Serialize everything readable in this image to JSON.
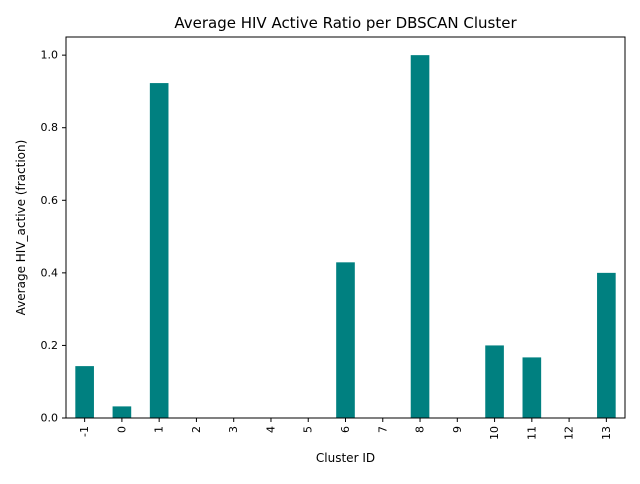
{
  "chart_data": {
    "type": "bar",
    "title": "Average HIV Active Ratio per DBSCAN Cluster",
    "xlabel": "Cluster ID",
    "ylabel": "Average HIV_active (fraction)",
    "categories": [
      "-1",
      "0",
      "1",
      "2",
      "3",
      "4",
      "5",
      "6",
      "7",
      "8",
      "9",
      "10",
      "11",
      "12",
      "13"
    ],
    "values": [
      0.143,
      0.032,
      0.923,
      0.0,
      0.0,
      0.0,
      0.0,
      0.429,
      0.0,
      1.0,
      0.0,
      0.2,
      0.167,
      0.0,
      0.4
    ],
    "ylim": [
      0,
      1.05
    ],
    "yticks": [
      0.0,
      0.2,
      0.4,
      0.6,
      0.8,
      1.0
    ],
    "ytick_labels": [
      "0.0",
      "0.2",
      "0.4",
      "0.6",
      "0.8",
      "1.0"
    ],
    "grid": false,
    "bar_color": "#008080"
  }
}
